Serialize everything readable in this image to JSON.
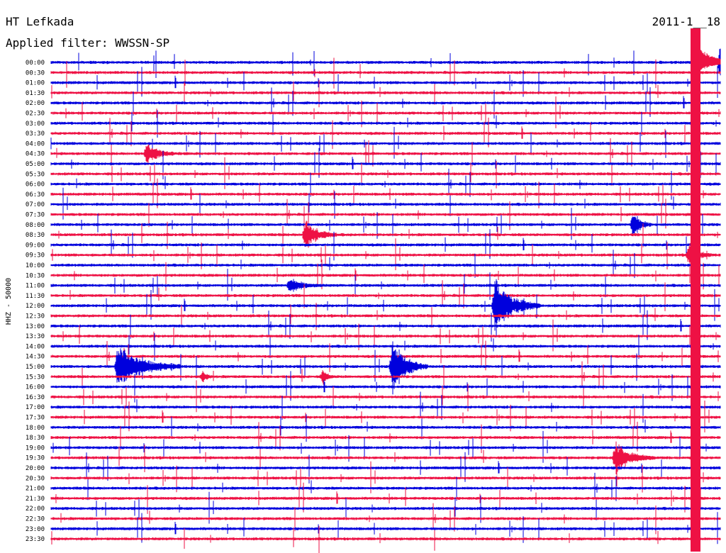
{
  "header": {
    "station": "HT Lefkada",
    "filter": "Applied filter: WWSSN-SP",
    "date": "2011-1__18"
  },
  "chart_data": {
    "type": "line",
    "title": "HT Lefkada",
    "subtitle": "Applied filter: WWSSN-SP",
    "ylabel": "HHZ - 50000",
    "y_tick_labels": [
      "00:00",
      "00:30",
      "01:00",
      "01:30",
      "02:00",
      "02:30",
      "03:00",
      "03:30",
      "04:00",
      "04:30",
      "05:00",
      "05:30",
      "06:00",
      "06:30",
      "07:00",
      "07:30",
      "08:00",
      "08:30",
      "09:00",
      "09:30",
      "10:00",
      "10:30",
      "11:00",
      "11:30",
      "12:00",
      "12:30",
      "13:00",
      "13:30",
      "14:00",
      "14:30",
      "15:00",
      "15:30",
      "16:00",
      "16:30",
      "17:00",
      "17:30",
      "18:00",
      "18:30",
      "19:00",
      "19:30",
      "20:00",
      "20:30",
      "21:00",
      "21:30",
      "22:00",
      "22:30",
      "23:00",
      "23:30"
    ],
    "x_range_minutes": [
      0,
      30
    ],
    "line_colors": [
      "#0000dd",
      "#ee1144"
    ],
    "events": [
      {
        "trace": "04:30",
        "minute": 4.3,
        "amplitude": 1.3,
        "duration_min": 1.2
      },
      {
        "trace": "08:30",
        "minute": 11.4,
        "amplitude": 1.6,
        "duration_min": 1.4
      },
      {
        "trace": "08:00",
        "minute": 26.1,
        "amplitude": 1.4,
        "duration_min": 0.8
      },
      {
        "trace": "09:30",
        "minute": 28.6,
        "amplitude": 1.2,
        "duration_min": 1.0
      },
      {
        "trace": "11:00",
        "minute": 10.7,
        "amplitude": 0.7,
        "duration_min": 1.5
      },
      {
        "trace": "12:00",
        "minute": 19.9,
        "amplitude": 3.2,
        "duration_min": 2.0
      },
      {
        "trace": "15:00",
        "minute": 3.0,
        "amplitude": 2.5,
        "duration_min": 2.8
      },
      {
        "trace": "15:00",
        "minute": 15.3,
        "amplitude": 3.0,
        "duration_min": 1.6
      },
      {
        "trace": "15:30",
        "minute": 6.8,
        "amplitude": 0.6,
        "duration_min": 0.5
      },
      {
        "trace": "15:30",
        "minute": 12.2,
        "amplitude": 0.8,
        "duration_min": 0.5
      },
      {
        "trace": "19:30",
        "minute": 25.3,
        "amplitude": 1.7,
        "duration_min": 1.8
      },
      {
        "trace": "00:00",
        "minute": 30.0,
        "amplitude": 2.0,
        "duration_min": 1.5
      }
    ]
  }
}
